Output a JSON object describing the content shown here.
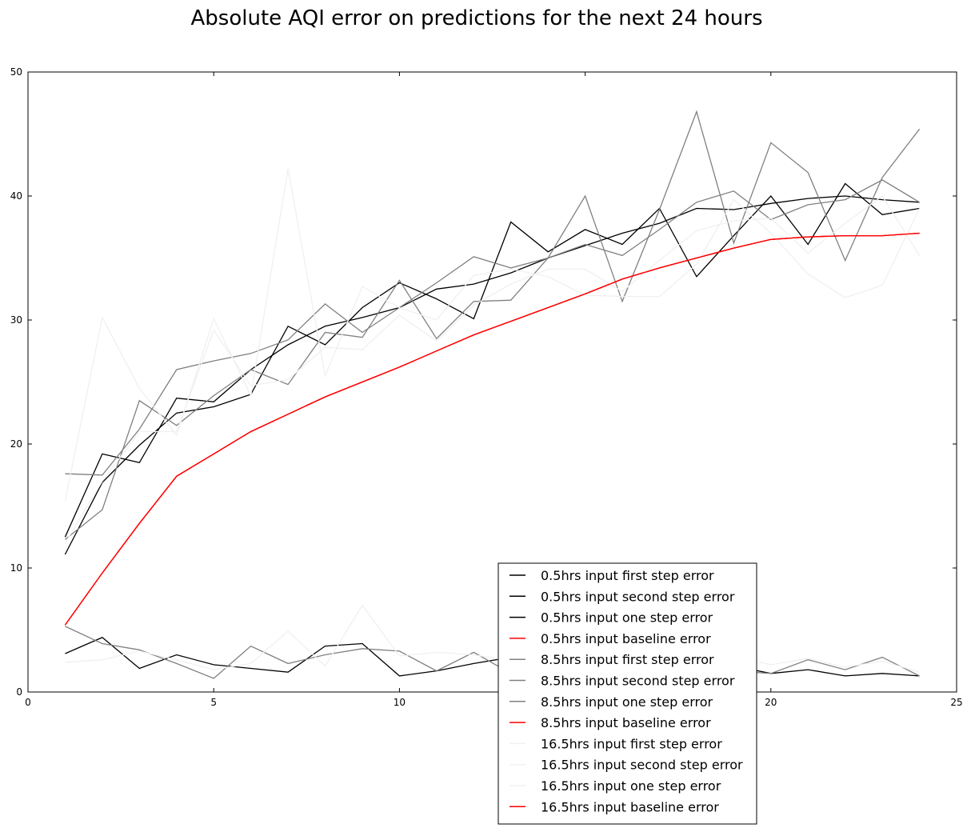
{
  "chart_data": {
    "type": "line",
    "title": "Absolute AQI error on predictions for the next 24 hours",
    "xlabel": "",
    "ylabel": "",
    "xlim": [
      0,
      25
    ],
    "ylim": [
      0,
      50
    ],
    "x_ticks": [
      "0",
      "5",
      "10",
      "15",
      "20",
      "25"
    ],
    "y_ticks": [
      "0",
      "10",
      "20",
      "30",
      "40",
      "50"
    ],
    "grid": false,
    "legend_placement": "lower-center",
    "x": [
      1,
      2,
      3,
      4,
      5,
      6,
      7,
      8,
      9,
      10,
      11,
      12,
      13,
      14,
      15,
      16,
      17,
      18,
      19,
      20,
      21,
      22,
      23,
      24
    ],
    "series": [
      {
        "name": "0.5hrs input first step error",
        "color": "#000000",
        "values": [
          11.1,
          16.9,
          19.9,
          22.5,
          23.0,
          24.0,
          29.5,
          28.0,
          31.0,
          33.0,
          31.7,
          30.1,
          37.9,
          35.5,
          37.3,
          36.1,
          39.0,
          33.5,
          36.8,
          40.0,
          36.1,
          41.0,
          38.5,
          39.0
        ]
      },
      {
        "name": "0.5hrs input second step error",
        "color": "#000000",
        "values": [
          3.1,
          4.4,
          1.9,
          3.0,
          2.2,
          1.9,
          1.6,
          3.7,
          3.9,
          1.3,
          1.7,
          2.3,
          2.8,
          2.3,
          2.1,
          2.0,
          1.8,
          1.9,
          2.1,
          1.5,
          1.8,
          1.3,
          1.5,
          1.3
        ]
      },
      {
        "name": "0.5hrs input one step error",
        "color": "#000000",
        "values": [
          12.5,
          19.2,
          18.5,
          23.7,
          23.4,
          26.0,
          28.0,
          29.5,
          30.2,
          31.0,
          32.5,
          32.9,
          33.8,
          35.0,
          36.0,
          37.0,
          37.8,
          39.0,
          38.9,
          39.4,
          39.8,
          40.0,
          39.7,
          39.5
        ]
      },
      {
        "name": "0.5hrs input baseline error",
        "color": "#ff0000",
        "values": [
          5.4,
          9.6,
          13.6,
          17.4,
          19.2,
          21.0,
          22.4,
          23.8,
          25.0,
          26.2,
          27.5,
          28.8,
          29.9,
          31.0,
          32.1,
          33.3,
          34.2,
          35.0,
          35.8,
          36.5,
          36.7,
          36.8,
          36.8,
          37.0
        ]
      },
      {
        "name": "8.5hrs input first step error",
        "color": "#808080",
        "values": [
          12.3,
          14.7,
          23.5,
          21.5,
          23.9,
          26.0,
          24.8,
          29.0,
          28.6,
          33.2,
          28.5,
          31.5,
          31.6,
          35.0,
          40.0,
          31.5,
          38.9,
          46.8,
          36.2,
          44.3,
          41.9,
          34.8,
          41.5,
          45.4
        ]
      },
      {
        "name": "8.5hrs input second step error",
        "color": "#808080",
        "values": [
          5.3,
          3.9,
          3.4,
          2.3,
          1.1,
          3.7,
          2.3,
          3.0,
          3.5,
          3.3,
          1.7,
          3.2,
          1.5,
          2.1,
          2.0,
          1.5,
          1.8,
          2.5,
          1.7,
          1.5,
          2.6,
          1.8,
          2.8,
          1.3
        ]
      },
      {
        "name": "8.5hrs input one step error",
        "color": "#808080",
        "values": [
          17.6,
          17.5,
          21.2,
          26.0,
          26.7,
          27.3,
          28.4,
          31.3,
          29.0,
          31.0,
          33.0,
          35.1,
          34.2,
          35.0,
          36.1,
          35.2,
          37.3,
          39.5,
          40.4,
          38.1,
          39.3,
          39.7,
          41.3,
          39.5
        ]
      },
      {
        "name": "8.5hrs input baseline error",
        "color": "#ff0000",
        "values": [
          5.4,
          9.6,
          13.6,
          17.4,
          19.2,
          21.0,
          22.4,
          23.8,
          25.0,
          26.2,
          27.5,
          28.8,
          29.9,
          31.0,
          32.1,
          33.3,
          34.2,
          35.0,
          35.8,
          36.5,
          36.7,
          36.8,
          36.8,
          37.0
        ]
      },
      {
        "name": "16.5hrs input first step error",
        "color": "#f0f0f0",
        "values": [
          15.4,
          30.2,
          24.5,
          20.7,
          30.1,
          23.9,
          42.2,
          25.5,
          32.7,
          31.0,
          30.0,
          33.6,
          34.1,
          33.5,
          32.0,
          31.9,
          31.9,
          34.5,
          39.7,
          37.0,
          33.7,
          31.8,
          32.8,
          39.0
        ]
      },
      {
        "name": "16.5hrs input second step error",
        "color": "#f0f0f0",
        "values": [
          2.4,
          2.6,
          3.3,
          2.6,
          1.8,
          2.3,
          4.9,
          2.1,
          7.0,
          2.9,
          3.2,
          3.0,
          2.5,
          2.9,
          3.4,
          2.7,
          3.0,
          2.6,
          2.8,
          2.2,
          2.7,
          2.0,
          2.5,
          1.6
        ]
      },
      {
        "name": "16.5hrs input one step error",
        "color": "#f0f0f0",
        "values": [
          12.0,
          17.0,
          21.0,
          21.0,
          29.2,
          24.7,
          25.2,
          27.8,
          27.6,
          30.4,
          28.3,
          31.2,
          32.9,
          34.1,
          34.1,
          32.3,
          34.8,
          37.2,
          38.0,
          38.2,
          35.4,
          37.8,
          40.0,
          35.2
        ]
      },
      {
        "name": "16.5hrs input baseline error",
        "color": "#ff0000",
        "values": [
          5.4,
          9.6,
          13.6,
          17.4,
          19.2,
          21.0,
          22.4,
          23.8,
          25.0,
          26.2,
          27.5,
          28.8,
          29.9,
          31.0,
          32.1,
          33.3,
          34.2,
          35.0,
          35.8,
          36.5,
          36.7,
          36.8,
          36.8,
          37.0
        ]
      }
    ]
  }
}
